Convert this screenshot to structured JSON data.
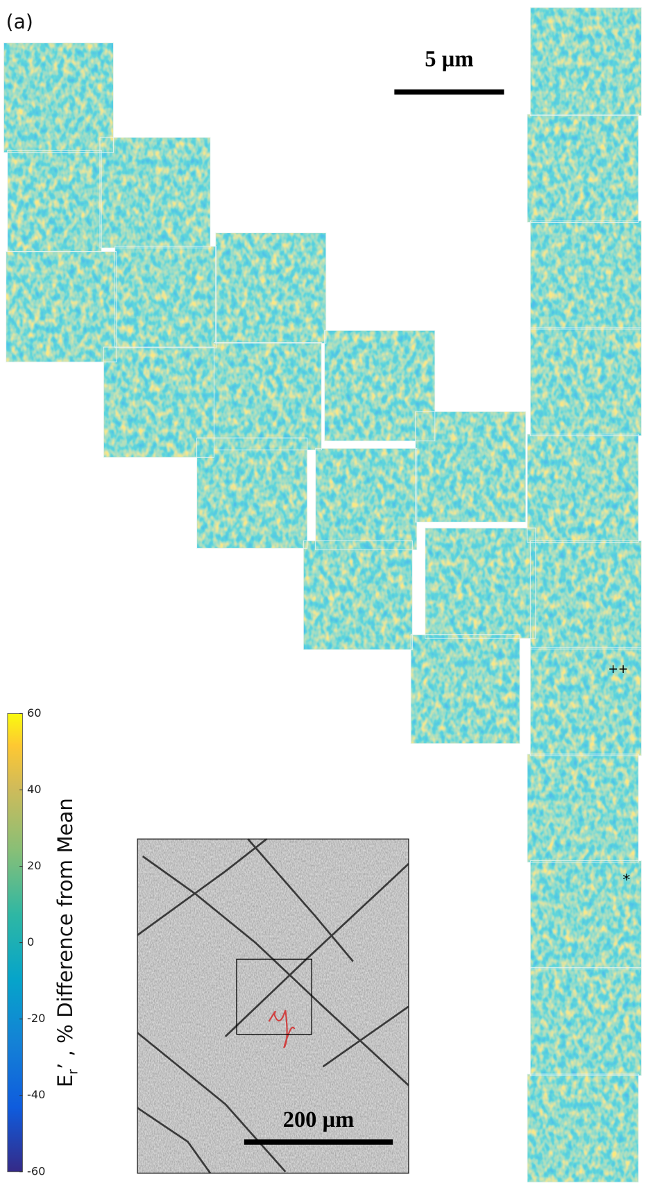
{
  "panel_label": "(a)",
  "scale_bar_map": "5 µm",
  "scale_bar_inset": "200 µm",
  "markers": [
    "++",
    "*"
  ],
  "colorbar": {
    "label": {
      "symbol": "E",
      "subscript": "r",
      "rest": "’ , % Difference from Mean"
    },
    "lim": [
      -60,
      60
    ],
    "ticks": [
      60,
      40,
      20,
      0,
      -20,
      -40,
      -60
    ]
  }
}
